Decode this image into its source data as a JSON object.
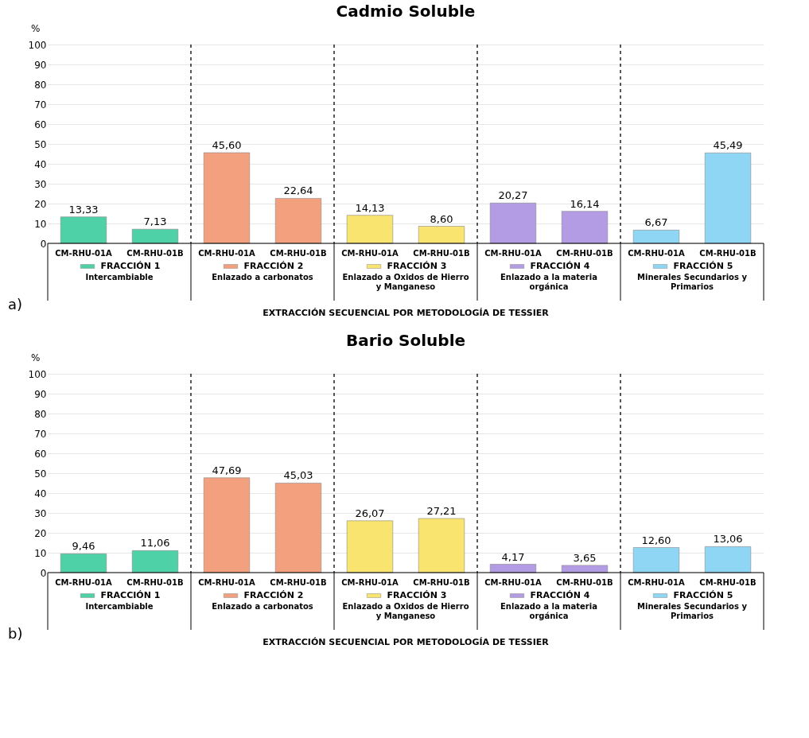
{
  "chart_data": [
    {
      "type": "bar",
      "title": "Cadmio Soluble",
      "ylabel": "%",
      "xlabel": "EXTRACCIÓN SECUENCIAL POR METODOLOGÍA DE TESSIER",
      "categories": [
        "CM-RHU-01A",
        "CM-RHU-01B",
        "CM-RHU-01A",
        "CM-RHU-01B",
        "CM-RHU-01A",
        "CM-RHU-01B",
        "CM-RHU-01A",
        "CM-RHU-01B",
        "CM-RHU-01A",
        "CM-RHU-01B"
      ],
      "series": [
        {
          "name": "FRACCIÓN 1",
          "color": "#4fd1a8",
          "values": [
            13.33,
            7.13,
            null,
            null,
            null,
            null,
            null,
            null,
            null,
            null
          ],
          "value_labels": [
            "13,33",
            "7,13",
            null,
            null,
            null,
            null,
            null,
            null,
            null,
            null
          ]
        },
        {
          "name": "FRACCIÓN 2",
          "color": "#f2a07e",
          "values": [
            null,
            null,
            45.6,
            22.64,
            null,
            null,
            null,
            null,
            null,
            null
          ],
          "value_labels": [
            null,
            null,
            "45,60",
            "22,64",
            null,
            null,
            null,
            null,
            null,
            null
          ]
        },
        {
          "name": "FRACCIÓN 3",
          "color": "#f8e46e",
          "values": [
            null,
            null,
            null,
            null,
            14.13,
            8.6,
            null,
            null,
            null,
            null
          ],
          "value_labels": [
            null,
            null,
            null,
            null,
            "14,13",
            "8,60",
            null,
            null,
            null,
            null
          ]
        },
        {
          "name": "FRACCIÓN 4",
          "color": "#b39ce3",
          "values": [
            null,
            null,
            null,
            null,
            null,
            null,
            20.27,
            16.14,
            null,
            null
          ],
          "value_labels": [
            null,
            null,
            null,
            null,
            null,
            null,
            "20,27",
            "16,14",
            null,
            null
          ]
        },
        {
          "name": "FRACCIÓN 5",
          "color": "#8fd6f5",
          "values": [
            null,
            null,
            null,
            null,
            null,
            null,
            null,
            null,
            6.67,
            45.49
          ],
          "value_labels": [
            null,
            null,
            null,
            null,
            null,
            null,
            null,
            null,
            "6,67",
            "45,49"
          ]
        }
      ],
      "annotations": [
        "Intercambiable",
        "Enlazado a carbonatos",
        "Enlazado a Oxidos de Hierro y Manganeso",
        "Enlazado a la materia orgánica",
        "Minerales Secundarios y Primarios",
        "a)"
      ],
      "ylim": [
        0,
        100
      ],
      "yticks": [
        0,
        10,
        20,
        30,
        40,
        50,
        60,
        70,
        80,
        90,
        100
      ],
      "grid": "y",
      "legend": "bottom"
    },
    {
      "type": "bar",
      "title": "Bario Soluble",
      "ylabel": "%",
      "xlabel": "EXTRACCIÓN SECUENCIAL POR METODOLOGÍA DE TESSIER",
      "categories": [
        "CM-RHU-01A",
        "CM-RHU-01B",
        "CM-RHU-01A",
        "CM-RHU-01B",
        "CM-RHU-01A",
        "CM-RHU-01B",
        "CM-RHU-01A",
        "CM-RHU-01B",
        "CM-RHU-01A",
        "CM-RHU-01B"
      ],
      "series": [
        {
          "name": "FRACCIÓN 1",
          "color": "#4fd1a8",
          "values": [
            9.46,
            11.06,
            null,
            null,
            null,
            null,
            null,
            null,
            null,
            null
          ],
          "value_labels": [
            "9,46",
            "11,06",
            null,
            null,
            null,
            null,
            null,
            null,
            null,
            null
          ]
        },
        {
          "name": "FRACCIÓN 2",
          "color": "#f2a07e",
          "values": [
            null,
            null,
            47.69,
            45.03,
            null,
            null,
            null,
            null,
            null,
            null
          ],
          "value_labels": [
            null,
            null,
            "47,69",
            "45,03",
            null,
            null,
            null,
            null,
            null,
            null
          ]
        },
        {
          "name": "FRACCIÓN 3",
          "color": "#f8e46e",
          "values": [
            null,
            null,
            null,
            null,
            26.07,
            27.21,
            null,
            null,
            null,
            null
          ],
          "value_labels": [
            null,
            null,
            null,
            null,
            "26,07",
            "27,21",
            null,
            null,
            null,
            null
          ]
        },
        {
          "name": "FRACCIÓN 4",
          "color": "#b39ce3",
          "values": [
            null,
            null,
            null,
            null,
            null,
            null,
            4.17,
            3.65,
            null,
            null
          ],
          "value_labels": [
            null,
            null,
            null,
            null,
            null,
            null,
            "4,17",
            "3,65",
            null,
            null
          ]
        },
        {
          "name": "FRACCIÓN 5",
          "color": "#8fd6f5",
          "values": [
            null,
            null,
            null,
            null,
            null,
            null,
            null,
            null,
            12.6,
            13.06
          ],
          "value_labels": [
            null,
            null,
            null,
            null,
            null,
            null,
            null,
            null,
            "12,60",
            "13,06"
          ]
        }
      ],
      "annotations": [
        "Intercambiable",
        "Enlazado a carbonatos",
        "Enlazado a Oxidos de Hierro y Manganeso",
        "Enlazado a la materia orgánica",
        "Minerales Secundarios y Primarios",
        "b)"
      ],
      "ylim": [
        0,
        100
      ],
      "yticks": [
        0,
        10,
        20,
        30,
        40,
        50,
        60,
        70,
        80,
        90,
        100
      ],
      "grid": "y",
      "legend": "bottom"
    }
  ]
}
